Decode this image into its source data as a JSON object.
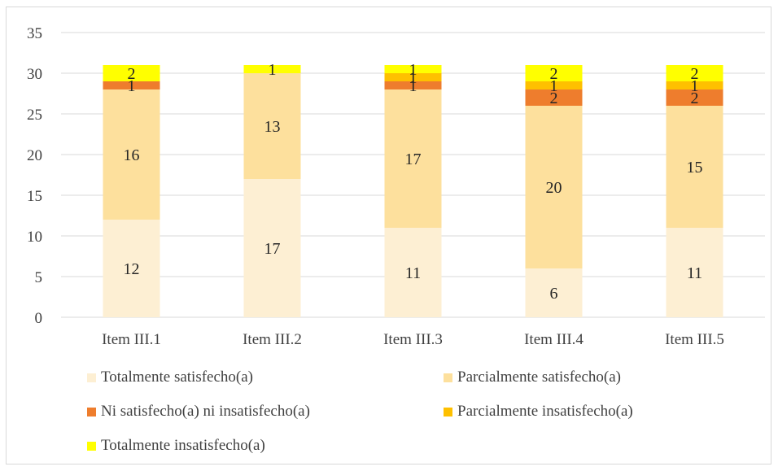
{
  "chart_data": {
    "type": "bar",
    "stacked": true,
    "categories": [
      "Item III.1",
      "Item III.2",
      "Item III.3",
      "Item III.4",
      "Item III.5"
    ],
    "series": [
      {
        "name": "Totalmente satisfecho(a)",
        "color": "#fdefd3",
        "values": [
          12,
          17,
          11,
          6,
          11
        ]
      },
      {
        "name": "Parcialmente satisfecho(a)",
        "color": "#fde09d",
        "values": [
          16,
          13,
          17,
          20,
          15
        ]
      },
      {
        "name": "Ni satisfecho(a) ni insatisfecho(a)",
        "color": "#ee7d2d",
        "values": [
          1,
          0,
          1,
          2,
          2
        ]
      },
      {
        "name": "Parcialmente insatisfecho(a)",
        "color": "#fec000",
        "values": [
          0,
          0,
          1,
          1,
          1
        ]
      },
      {
        "name": "Totalmente insatisfecho(a)",
        "color": "#ffff00",
        "values": [
          2,
          1,
          1,
          2,
          2
        ]
      }
    ],
    "ylim": [
      0,
      35
    ],
    "yticks": [
      0,
      5,
      10,
      15,
      20,
      25,
      30,
      35
    ],
    "grid": true,
    "legend_position": "bottom"
  }
}
